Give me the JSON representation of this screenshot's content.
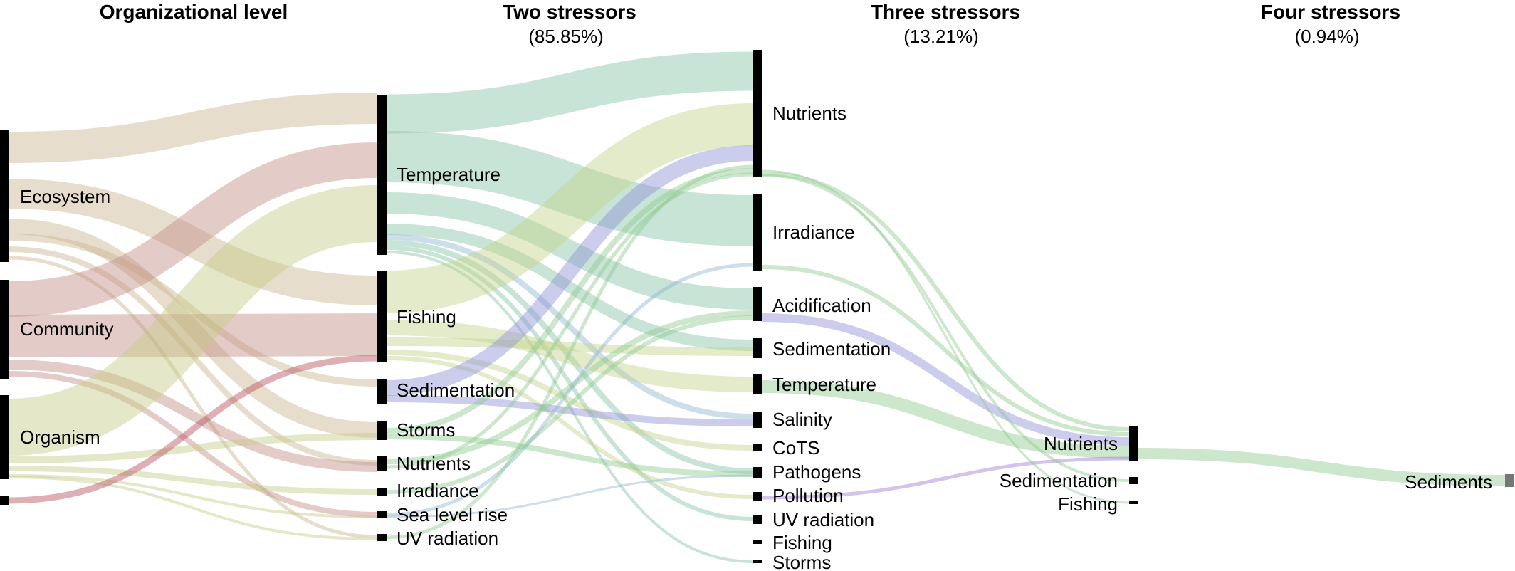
{
  "headers": [
    {
      "title": "Organizational level",
      "subtitle": ""
    },
    {
      "title": "Two stressors",
      "subtitle": "(85.85%)"
    },
    {
      "title": "Three stressors",
      "subtitle": "(13.21%)"
    },
    {
      "title": "Four stressors",
      "subtitle": "(0.94%)"
    }
  ],
  "colors": {
    "ecosystem": "#c9b48d",
    "community": "#c08e86",
    "organism": "#c6cd84",
    "unlabeled": "#b5505c",
    "green": "#8fc98f",
    "teal": "#86c4a4",
    "blue": "#8f90d6",
    "purple": "#a07ad0",
    "lightblue": "#8cb6cf",
    "olive": "#c3d38a",
    "node": "#000000",
    "endnode": "#777777"
  },
  "columns": {
    "organizational": [
      {
        "id": "ecosystem",
        "label": "Ecosystem"
      },
      {
        "id": "community",
        "label": "Community"
      },
      {
        "id": "organism",
        "label": "Organism"
      },
      {
        "id": "org_unlabeled",
        "label": ""
      }
    ],
    "two": [
      {
        "id": "t_temperature",
        "label": "Temperature"
      },
      {
        "id": "t_fishing",
        "label": "Fishing"
      },
      {
        "id": "t_sedimentation",
        "label": "Sedimentation"
      },
      {
        "id": "t_storms",
        "label": "Storms"
      },
      {
        "id": "t_nutrients",
        "label": "Nutrients"
      },
      {
        "id": "t_irradiance",
        "label": "Irradiance"
      },
      {
        "id": "t_sealevel",
        "label": "Sea level rise"
      },
      {
        "id": "t_uv",
        "label": "UV radiation"
      }
    ],
    "three": [
      {
        "id": "h_nutrients",
        "label": "Nutrients"
      },
      {
        "id": "h_irradiance",
        "label": "Irradiance"
      },
      {
        "id": "h_acidification",
        "label": "Acidification"
      },
      {
        "id": "h_sedimentation",
        "label": "Sedimentation"
      },
      {
        "id": "h_temperature",
        "label": "Temperature"
      },
      {
        "id": "h_salinity",
        "label": "Salinity"
      },
      {
        "id": "h_cots",
        "label": "CoTS"
      },
      {
        "id": "h_pathogens",
        "label": "Pathogens"
      },
      {
        "id": "h_pollution",
        "label": "Pollution"
      },
      {
        "id": "h_uv",
        "label": "UV radiation"
      },
      {
        "id": "h_fishing",
        "label": "Fishing"
      },
      {
        "id": "h_storms",
        "label": "Storms"
      }
    ],
    "four": [
      {
        "id": "f_nutrients",
        "label": "Nutrients"
      },
      {
        "id": "f_sedimentation",
        "label": "Sedimentation"
      },
      {
        "id": "f_fishing",
        "label": "Fishing"
      }
    ],
    "five": [
      {
        "id": "s_sediments",
        "label": "Sediments"
      }
    ]
  }
}
